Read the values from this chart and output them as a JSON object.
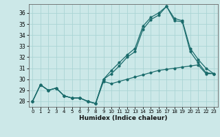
{
  "xlabel": "Humidex (Indice chaleur)",
  "bg_color": "#cce8e8",
  "grid_color": "#aad4d4",
  "line_color": "#1a6b6b",
  "xlim": [
    -0.5,
    23.5
  ],
  "ylim": [
    27.5,
    36.8
  ],
  "yticks": [
    28,
    29,
    30,
    31,
    32,
    33,
    34,
    35,
    36
  ],
  "xticks": [
    0,
    1,
    2,
    3,
    4,
    5,
    6,
    7,
    8,
    9,
    10,
    11,
    12,
    13,
    14,
    15,
    16,
    17,
    18,
    19,
    20,
    21,
    22,
    23
  ],
  "line1_x": [
    0,
    1,
    2,
    3,
    4,
    5,
    6,
    7,
    8,
    9,
    10,
    11,
    12,
    13,
    14,
    15,
    16,
    17,
    18,
    19,
    20,
    21,
    22,
    23
  ],
  "line1_y": [
    28.0,
    29.5,
    29.0,
    29.2,
    28.5,
    28.3,
    28.3,
    28.0,
    27.8,
    29.8,
    29.6,
    29.8,
    30.0,
    30.2,
    30.4,
    30.6,
    30.8,
    30.9,
    31.0,
    31.1,
    31.2,
    31.3,
    30.5,
    30.5
  ],
  "line2_x": [
    0,
    1,
    2,
    3,
    4,
    5,
    6,
    7,
    8,
    9,
    10,
    11,
    12,
    13,
    14,
    15,
    16,
    17,
    18,
    19,
    20,
    21,
    22,
    23
  ],
  "line2_y": [
    28.0,
    29.5,
    29.0,
    29.2,
    28.5,
    28.3,
    28.3,
    28.0,
    27.8,
    30.0,
    30.8,
    31.5,
    32.2,
    32.8,
    34.8,
    35.6,
    36.0,
    36.6,
    35.5,
    35.3,
    32.8,
    31.8,
    31.0,
    30.5
  ],
  "line3_x": [
    0,
    1,
    2,
    3,
    4,
    5,
    6,
    7,
    8,
    9,
    10,
    11,
    12,
    13,
    14,
    15,
    16,
    17,
    18,
    19,
    20,
    21,
    22,
    23
  ],
  "line3_y": [
    28.0,
    29.5,
    29.0,
    29.2,
    28.5,
    28.3,
    28.3,
    28.0,
    27.8,
    30.0,
    30.5,
    31.2,
    32.0,
    32.5,
    34.5,
    35.4,
    35.8,
    36.6,
    35.3,
    35.2,
    32.5,
    31.5,
    30.6,
    30.5
  ]
}
